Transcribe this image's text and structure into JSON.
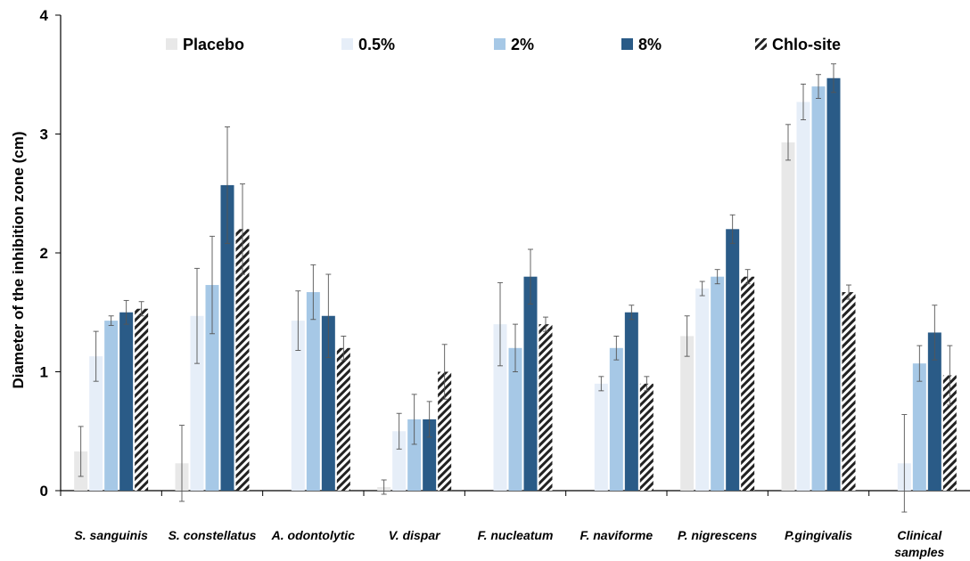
{
  "chart_data": {
    "type": "bar",
    "title": "",
    "xlabel": "",
    "ylabel": "Diameter of the inhibition zone (cm)",
    "ylim": [
      0,
      4
    ],
    "yticks": [
      "0",
      "1",
      "2",
      "3",
      "4"
    ],
    "grid": false,
    "legend_position": "top",
    "categories": [
      [
        "S. sanguinis"
      ],
      [
        "S. constellatus"
      ],
      [
        "A. odontolytic"
      ],
      [
        "V. dispar"
      ],
      [
        "F. nucleatum"
      ],
      [
        "F. naviforme"
      ],
      [
        "P. nigrescens"
      ],
      [
        "P.gingivalis"
      ],
      [
        "Clinical",
        "samples"
      ]
    ],
    "series": [
      {
        "name": "Placebo",
        "color": "#e8e8e8",
        "pattern": "solid",
        "values": [
          0.33,
          0.23,
          0,
          0.03,
          0,
          0,
          1.3,
          2.93,
          0
        ],
        "errors": [
          0.21,
          0.32,
          0,
          0.06,
          0,
          0,
          0.17,
          0.15,
          0
        ]
      },
      {
        "name": "0.5%",
        "color": "#e6eef8",
        "pattern": "solid",
        "values": [
          1.13,
          1.47,
          1.43,
          0.5,
          1.4,
          0.9,
          1.7,
          3.27,
          0.23
        ],
        "errors": [
          0.21,
          0.4,
          0.25,
          0.15,
          0.35,
          0.06,
          0.06,
          0.15,
          0.41
        ]
      },
      {
        "name": "2%",
        "color": "#a6c8e6",
        "pattern": "solid",
        "values": [
          1.43,
          1.73,
          1.67,
          0.6,
          1.2,
          1.2,
          1.8,
          3.4,
          1.07
        ],
        "errors": [
          0.04,
          0.41,
          0.23,
          0.21,
          0.2,
          0.1,
          0.06,
          0.1,
          0.15
        ]
      },
      {
        "name": "8%",
        "color": "#2a5b87",
        "pattern": "solid",
        "values": [
          1.5,
          2.57,
          1.47,
          0.6,
          1.8,
          1.5,
          2.2,
          3.47,
          1.33
        ],
        "errors": [
          0.1,
          0.49,
          0.35,
          0.15,
          0.23,
          0.06,
          0.12,
          0.12,
          0.23
        ]
      },
      {
        "name": "Chlo-site",
        "color": "#222222",
        "pattern": "hatch",
        "values": [
          1.53,
          2.2,
          1.2,
          1.0,
          1.4,
          0.9,
          1.8,
          1.67,
          0.97
        ],
        "errors": [
          0.06,
          0.38,
          0.1,
          0.23,
          0.06,
          0.06,
          0.06,
          0.06,
          0.25
        ]
      }
    ]
  }
}
